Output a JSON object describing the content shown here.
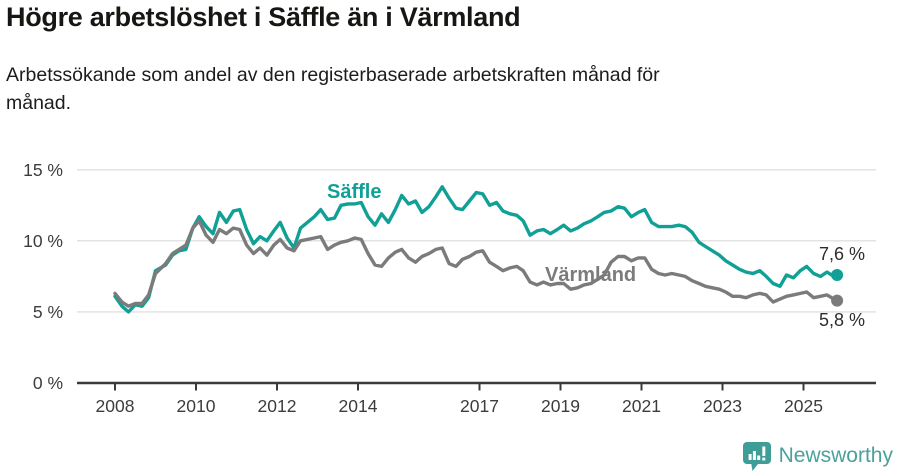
{
  "header": {
    "title": "Högre arbetslöshet i Säffle än i Värmland",
    "subtitle_line1": "Arbetssökande som andel av den registerbaserade arbetskraften månad för",
    "subtitle_line2": "månad."
  },
  "chart_data": {
    "type": "line",
    "title": "Högre arbetslöshet i Säffle än i Värmland",
    "subtitle": "Arbetssökande som andel av den registerbaserade arbetskraften månad för månad.",
    "grid": true,
    "legend_position": "inline-labels",
    "x_axis": {
      "label": "",
      "domain": [
        2007.85,
        2026.1
      ],
      "ticks": [
        2008,
        2010,
        2012,
        2014,
        2017,
        2019,
        2021,
        2023,
        2025
      ],
      "tick_labels": [
        "2008",
        "2010",
        "2012",
        "2014",
        "2017",
        "2019",
        "2021",
        "2023",
        "2025"
      ]
    },
    "y_axis": {
      "label": "",
      "unit": "%",
      "ylim": [
        0,
        15
      ],
      "ticks": [
        0,
        5,
        10,
        15
      ],
      "tick_labels": [
        "0 %",
        "5 %",
        "10 %",
        "15 %"
      ]
    },
    "colors": {
      "saffle": "#10a096",
      "varmland": "#7b7b7b",
      "grid": "#e0e0e0",
      "axis": "#3a3a3a",
      "annotation": "#2d2d2d"
    },
    "series": [
      {
        "id": "saffle",
        "name": "Säffle",
        "color": "#10a096",
        "end_value": 7.6,
        "end_label": "7,6 %",
        "points": [
          [
            2008.0,
            6.1
          ],
          [
            2008.17,
            5.4
          ],
          [
            2008.33,
            5.0
          ],
          [
            2008.5,
            5.5
          ],
          [
            2008.67,
            5.4
          ],
          [
            2008.83,
            6.0
          ],
          [
            2009.0,
            7.9
          ],
          [
            2009.25,
            8.3
          ],
          [
            2009.42,
            9.0
          ],
          [
            2009.58,
            9.3
          ],
          [
            2009.75,
            9.4
          ],
          [
            2009.92,
            10.9
          ],
          [
            2010.08,
            11.7
          ],
          [
            2010.25,
            11.0
          ],
          [
            2010.42,
            10.5
          ],
          [
            2010.58,
            12.0
          ],
          [
            2010.75,
            11.3
          ],
          [
            2010.92,
            12.1
          ],
          [
            2011.08,
            12.2
          ],
          [
            2011.25,
            10.8
          ],
          [
            2011.42,
            9.8
          ],
          [
            2011.58,
            10.3
          ],
          [
            2011.75,
            10.0
          ],
          [
            2011.92,
            10.7
          ],
          [
            2012.08,
            11.3
          ],
          [
            2012.25,
            10.2
          ],
          [
            2012.42,
            9.5
          ],
          [
            2012.58,
            10.9
          ],
          [
            2012.75,
            11.3
          ],
          [
            2012.92,
            11.7
          ],
          [
            2013.08,
            12.2
          ],
          [
            2013.25,
            11.5
          ],
          [
            2013.42,
            11.6
          ],
          [
            2013.58,
            12.5
          ],
          [
            2013.75,
            12.6
          ],
          [
            2013.92,
            12.6
          ],
          [
            2014.08,
            12.7
          ],
          [
            2014.25,
            11.7
          ],
          [
            2014.42,
            11.1
          ],
          [
            2014.58,
            11.9
          ],
          [
            2014.75,
            11.3
          ],
          [
            2014.92,
            12.2
          ],
          [
            2015.08,
            13.2
          ],
          [
            2015.25,
            12.6
          ],
          [
            2015.42,
            12.8
          ],
          [
            2015.58,
            12.0
          ],
          [
            2015.75,
            12.4
          ],
          [
            2015.92,
            13.1
          ],
          [
            2016.08,
            13.8
          ],
          [
            2016.25,
            13.0
          ],
          [
            2016.42,
            12.3
          ],
          [
            2016.58,
            12.2
          ],
          [
            2016.75,
            12.8
          ],
          [
            2016.92,
            13.4
          ],
          [
            2017.08,
            13.3
          ],
          [
            2017.25,
            12.5
          ],
          [
            2017.42,
            12.7
          ],
          [
            2017.58,
            12.1
          ],
          [
            2017.75,
            11.9
          ],
          [
            2017.92,
            11.8
          ],
          [
            2018.08,
            11.4
          ],
          [
            2018.25,
            10.4
          ],
          [
            2018.42,
            10.7
          ],
          [
            2018.58,
            10.8
          ],
          [
            2018.75,
            10.5
          ],
          [
            2018.92,
            10.8
          ],
          [
            2019.08,
            11.1
          ],
          [
            2019.25,
            10.7
          ],
          [
            2019.42,
            10.9
          ],
          [
            2019.58,
            11.2
          ],
          [
            2019.75,
            11.4
          ],
          [
            2019.92,
            11.7
          ],
          [
            2020.08,
            12.0
          ],
          [
            2020.25,
            12.1
          ],
          [
            2020.42,
            12.4
          ],
          [
            2020.58,
            12.3
          ],
          [
            2020.75,
            11.7
          ],
          [
            2020.92,
            12.0
          ],
          [
            2021.08,
            12.2
          ],
          [
            2021.25,
            11.3
          ],
          [
            2021.42,
            11.0
          ],
          [
            2021.58,
            11.0
          ],
          [
            2021.75,
            11.0
          ],
          [
            2021.92,
            11.1
          ],
          [
            2022.08,
            11.0
          ],
          [
            2022.25,
            10.6
          ],
          [
            2022.42,
            9.9
          ],
          [
            2022.58,
            9.6
          ],
          [
            2022.75,
            9.3
          ],
          [
            2022.92,
            9.0
          ],
          [
            2023.08,
            8.6
          ],
          [
            2023.25,
            8.3
          ],
          [
            2023.42,
            8.0
          ],
          [
            2023.58,
            7.8
          ],
          [
            2023.75,
            7.7
          ],
          [
            2023.92,
            7.9
          ],
          [
            2024.08,
            7.5
          ],
          [
            2024.25,
            7.0
          ],
          [
            2024.42,
            6.8
          ],
          [
            2024.58,
            7.6
          ],
          [
            2024.75,
            7.4
          ],
          [
            2024.92,
            7.9
          ],
          [
            2025.08,
            8.2
          ],
          [
            2025.25,
            7.7
          ],
          [
            2025.42,
            7.5
          ],
          [
            2025.58,
            7.8
          ],
          [
            2025.75,
            7.5
          ],
          [
            2025.83,
            7.6
          ]
        ]
      },
      {
        "id": "varmland",
        "name": "Värmland",
        "color": "#7b7b7b",
        "end_value": 5.8,
        "end_label": "5,8 %",
        "points": [
          [
            2008.0,
            6.3
          ],
          [
            2008.17,
            5.7
          ],
          [
            2008.33,
            5.4
          ],
          [
            2008.5,
            5.6
          ],
          [
            2008.67,
            5.6
          ],
          [
            2008.83,
            6.2
          ],
          [
            2009.0,
            7.7
          ],
          [
            2009.25,
            8.4
          ],
          [
            2009.42,
            9.1
          ],
          [
            2009.58,
            9.4
          ],
          [
            2009.75,
            9.7
          ],
          [
            2009.92,
            10.9
          ],
          [
            2010.08,
            11.4
          ],
          [
            2010.25,
            10.4
          ],
          [
            2010.42,
            9.9
          ],
          [
            2010.58,
            10.8
          ],
          [
            2010.75,
            10.5
          ],
          [
            2010.92,
            10.9
          ],
          [
            2011.08,
            10.8
          ],
          [
            2011.25,
            9.7
          ],
          [
            2011.42,
            9.1
          ],
          [
            2011.58,
            9.5
          ],
          [
            2011.75,
            9.0
          ],
          [
            2011.92,
            9.7
          ],
          [
            2012.08,
            10.1
          ],
          [
            2012.25,
            9.5
          ],
          [
            2012.42,
            9.3
          ],
          [
            2012.58,
            10.0
          ],
          [
            2012.75,
            10.1
          ],
          [
            2012.92,
            10.2
          ],
          [
            2013.08,
            10.3
          ],
          [
            2013.25,
            9.4
          ],
          [
            2013.42,
            9.7
          ],
          [
            2013.58,
            9.9
          ],
          [
            2013.75,
            10.0
          ],
          [
            2013.92,
            10.2
          ],
          [
            2014.08,
            10.1
          ],
          [
            2014.25,
            9.1
          ],
          [
            2014.42,
            8.3
          ],
          [
            2014.58,
            8.2
          ],
          [
            2014.75,
            8.8
          ],
          [
            2014.92,
            9.2
          ],
          [
            2015.08,
            9.4
          ],
          [
            2015.25,
            8.8
          ],
          [
            2015.42,
            8.5
          ],
          [
            2015.58,
            8.9
          ],
          [
            2015.75,
            9.1
          ],
          [
            2015.92,
            9.4
          ],
          [
            2016.08,
            9.5
          ],
          [
            2016.25,
            8.4
          ],
          [
            2016.42,
            8.2
          ],
          [
            2016.58,
            8.7
          ],
          [
            2016.75,
            8.9
          ],
          [
            2016.92,
            9.2
          ],
          [
            2017.08,
            9.3
          ],
          [
            2017.25,
            8.5
          ],
          [
            2017.42,
            8.2
          ],
          [
            2017.58,
            7.9
          ],
          [
            2017.75,
            8.1
          ],
          [
            2017.92,
            8.2
          ],
          [
            2018.08,
            7.9
          ],
          [
            2018.25,
            7.1
          ],
          [
            2018.42,
            6.9
          ],
          [
            2018.58,
            7.1
          ],
          [
            2018.75,
            6.9
          ],
          [
            2018.92,
            7.0
          ],
          [
            2019.08,
            7.0
          ],
          [
            2019.25,
            6.6
          ],
          [
            2019.42,
            6.7
          ],
          [
            2019.58,
            6.9
          ],
          [
            2019.75,
            7.0
          ],
          [
            2019.92,
            7.3
          ],
          [
            2020.08,
            7.6
          ],
          [
            2020.25,
            8.5
          ],
          [
            2020.42,
            8.9
          ],
          [
            2020.58,
            8.9
          ],
          [
            2020.75,
            8.6
          ],
          [
            2020.92,
            8.8
          ],
          [
            2021.08,
            8.8
          ],
          [
            2021.25,
            8.0
          ],
          [
            2021.42,
            7.7
          ],
          [
            2021.58,
            7.6
          ],
          [
            2021.75,
            7.7
          ],
          [
            2021.92,
            7.6
          ],
          [
            2022.08,
            7.5
          ],
          [
            2022.25,
            7.2
          ],
          [
            2022.42,
            7.0
          ],
          [
            2022.58,
            6.8
          ],
          [
            2022.75,
            6.7
          ],
          [
            2022.92,
            6.6
          ],
          [
            2023.08,
            6.4
          ],
          [
            2023.25,
            6.1
          ],
          [
            2023.42,
            6.1
          ],
          [
            2023.58,
            6.0
          ],
          [
            2023.75,
            6.2
          ],
          [
            2023.92,
            6.3
          ],
          [
            2024.08,
            6.2
          ],
          [
            2024.25,
            5.7
          ],
          [
            2024.42,
            5.9
          ],
          [
            2024.58,
            6.1
          ],
          [
            2024.75,
            6.2
          ],
          [
            2024.92,
            6.3
          ],
          [
            2025.08,
            6.4
          ],
          [
            2025.25,
            6.0
          ],
          [
            2025.42,
            6.1
          ],
          [
            2025.58,
            6.2
          ],
          [
            2025.75,
            5.9
          ],
          [
            2025.83,
            5.8
          ]
        ]
      }
    ]
  },
  "logo": {
    "text": "Newsworthy",
    "icon": "bar-chart-speech-bubble",
    "color": "#4aa19c"
  }
}
